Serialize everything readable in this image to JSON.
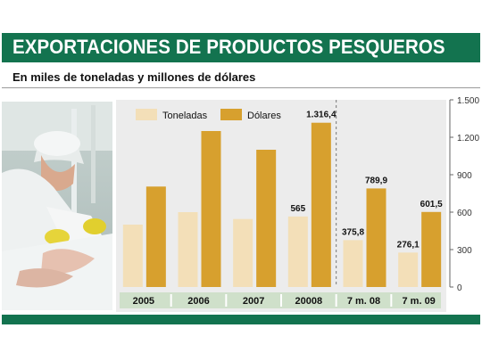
{
  "header": {
    "title": "EXPORTACIONES DE PRODUCTOS PESQUEROS",
    "subtitle": "En miles de toneladas y millones de dólares"
  },
  "photo": {
    "description_icon": "fish-processing-worker-photo"
  },
  "colors": {
    "brand_green": "#13734f",
    "toneladas": "#f3dfb8",
    "dolares": "#d7a02e",
    "year_band": "#cfe0ca",
    "chart_bg": "#ececec"
  },
  "chart_data": {
    "type": "bar",
    "title": "",
    "xlabel": "",
    "ylabel": "",
    "categories": [
      "2005",
      "2006",
      "2007",
      "20008",
      "7 m. 08",
      "7 m. 09"
    ],
    "series": [
      {
        "name": "Toneladas",
        "values": [
          500,
          600,
          545,
          565,
          375.8,
          276.1
        ]
      },
      {
        "name": "Dólares",
        "values": [
          805,
          1250,
          1100,
          1316.4,
          789.9,
          601.5
        ]
      }
    ],
    "data_labels": [
      {
        "category": "20008",
        "series": "Toneladas",
        "text": "565"
      },
      {
        "category": "20008",
        "series": "Dólares",
        "text": "1.316,4"
      },
      {
        "category": "7 m. 08",
        "series": "Toneladas",
        "text": "375,8"
      },
      {
        "category": "7 m. 08",
        "series": "Dólares",
        "text": "789,9"
      },
      {
        "category": "7 m. 09",
        "series": "Toneladas",
        "text": "276,1"
      },
      {
        "category": "7 m. 09",
        "series": "Dólares",
        "text": "601,5"
      }
    ],
    "ylim": [
      0,
      1500
    ],
    "yticks": [
      {
        "value": 0,
        "label": "0"
      },
      {
        "value": 300,
        "label": "300"
      },
      {
        "value": 600,
        "label": "600"
      },
      {
        "value": 900,
        "label": "900"
      },
      {
        "value": 1200,
        "label": "1.200"
      },
      {
        "value": 1500,
        "label": "1.500"
      }
    ],
    "y_axis_side": "right",
    "grid": false,
    "legend": {
      "placement": "top-left"
    },
    "separator_before_category": "7 m. 08"
  }
}
